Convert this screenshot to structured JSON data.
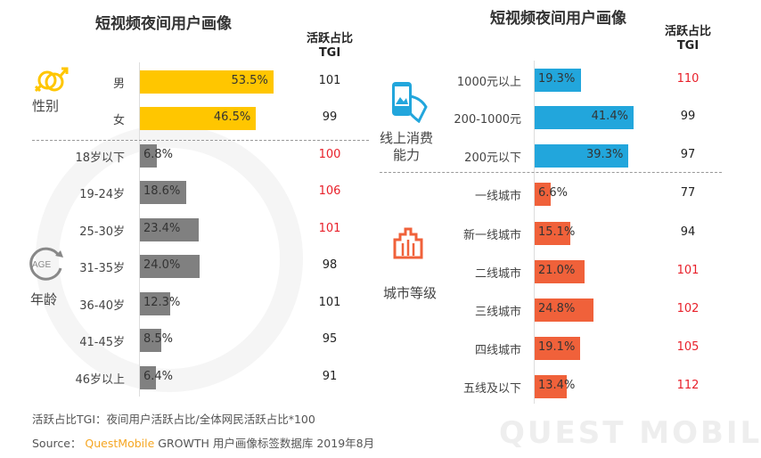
{
  "watermark": "QUEST MOBILE",
  "chart_data": [
    {
      "type": "bar",
      "orientation": "horizontal",
      "title": "短视频夜间用户画像",
      "tgi_header": [
        "活跃占比",
        "TGI"
      ],
      "groups": [
        {
          "label": "性别",
          "icon": "gender-icon",
          "color": "#FFC600",
          "categories": [
            "男",
            "女"
          ],
          "values": [
            53.5,
            46.5
          ],
          "labels": [
            "53.5%",
            "46.5%"
          ],
          "tgi": [
            101,
            99
          ],
          "tgi_highlight": [
            false,
            false
          ]
        },
        {
          "label": "年龄",
          "icon": "age-icon",
          "icon_text": "AGE",
          "color": "#808080",
          "categories": [
            "18岁以下",
            "19-24岁",
            "25-30岁",
            "31-35岁",
            "36-40岁",
            "41-45岁",
            "46岁以上"
          ],
          "values": [
            6.8,
            18.6,
            23.4,
            24.0,
            12.3,
            8.5,
            6.4
          ],
          "labels": [
            "6.8%",
            "18.6%",
            "23.4%",
            "24.0%",
            "12.3%",
            "8.5%",
            "6.4%"
          ],
          "tgi": [
            100,
            106,
            101,
            98,
            101,
            95,
            91
          ],
          "tgi_highlight": [
            true,
            true,
            true,
            false,
            false,
            false,
            false
          ]
        }
      ]
    },
    {
      "type": "bar",
      "orientation": "horizontal",
      "title": "短视频夜间用户画像",
      "tgi_header": [
        "活跃占比",
        "TGI"
      ],
      "groups": [
        {
          "label": "线上消费能力",
          "label_lines": [
            "线上消费",
            "能力"
          ],
          "icon": "phone-icon",
          "color": "#22A6DC",
          "categories": [
            "1000元以上",
            "200-1000元",
            "200元以下"
          ],
          "values": [
            19.3,
            41.4,
            39.3
          ],
          "labels": [
            "19.3%",
            "41.4%",
            "39.3%"
          ],
          "tgi": [
            110,
            99,
            97
          ],
          "tgi_highlight": [
            true,
            false,
            false
          ]
        },
        {
          "label": "城市等级",
          "icon": "city-icon",
          "color": "#F0613A",
          "categories": [
            "一线城市",
            "新一线城市",
            "二线城市",
            "三线城市",
            "四线城市",
            "五线及以下"
          ],
          "values": [
            6.6,
            15.1,
            21.0,
            24.8,
            19.1,
            13.4
          ],
          "labels": [
            "6.6%",
            "15.1%",
            "21.0%",
            "24.8%",
            "19.1%",
            "13.4%"
          ],
          "tgi": [
            77,
            94,
            101,
            102,
            105,
            112
          ],
          "tgi_highlight": [
            false,
            false,
            true,
            true,
            true,
            true
          ]
        }
      ]
    }
  ],
  "colors": {
    "tgi_normal": "#222222",
    "tgi_highlight": "#E8202A",
    "brand": "#F5A623"
  },
  "footer": {
    "note": "活跃占比TGI：夜间用户活跃占比/全体网民活跃占比*100",
    "source_prefix": "Source：",
    "source_brand": "QuestMobile",
    "source_rest": "GROWTH 用户画像标签数据库 2019年8月"
  }
}
